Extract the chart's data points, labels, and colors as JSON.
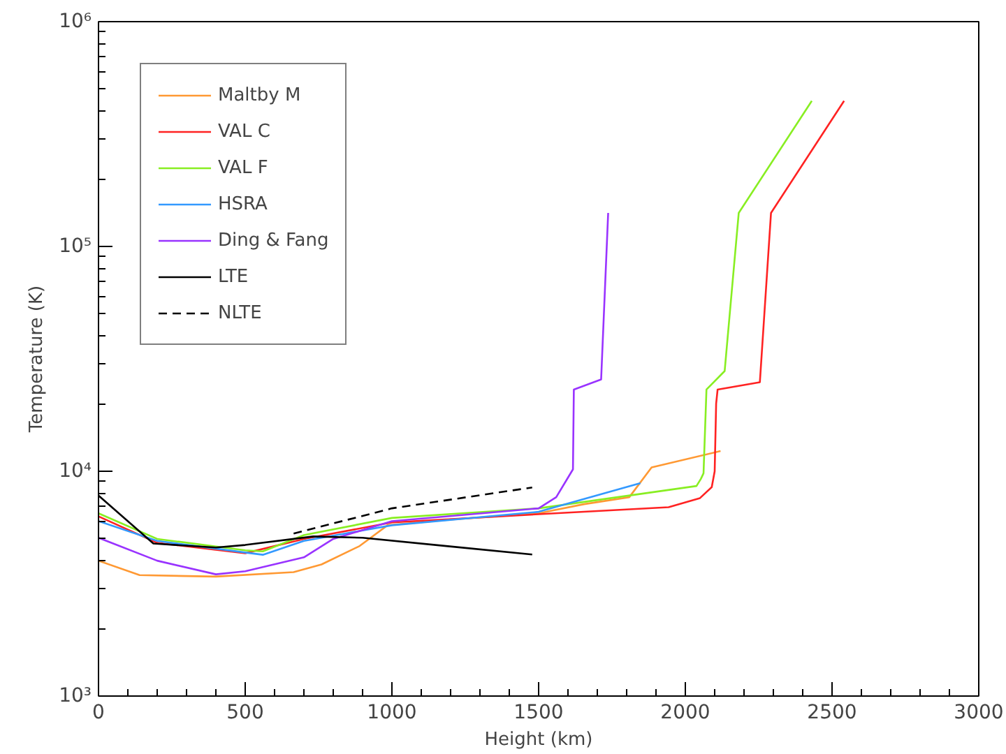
{
  "chart_data": {
    "type": "line",
    "xlabel": "Height (km)",
    "ylabel": "Temperature (K)",
    "log": "y",
    "xlim": [
      0,
      3000
    ],
    "xticks": [
      0,
      500,
      1000,
      1500,
      2000,
      2500,
      3000
    ],
    "ylim": [
      1000,
      1000000
    ],
    "yticks": [
      {
        "value": 1000,
        "label": "10³"
      },
      {
        "value": 10000,
        "label": "10⁴"
      },
      {
        "value": 100000,
        "label": "10⁵"
      },
      {
        "value": 1000000,
        "label": "10⁶"
      }
    ],
    "grid": false,
    "legend": "top left",
    "marker": "none",
    "series": [
      {
        "name": "Maltby M",
        "color": "#ff9933",
        "x": [
          0,
          140,
          400,
          665,
          760,
          890,
          985,
          1200,
          1500,
          1655,
          1809,
          1885,
          2120
        ],
        "values": [
          4000,
          3450,
          3400,
          3560,
          3850,
          4650,
          5750,
          6100,
          6500,
          7140,
          7670,
          10400,
          12300
        ]
      },
      {
        "name": "VAL C",
        "color": "#ff2222",
        "x": [
          0,
          200,
          500,
          700,
          1000,
          1500,
          1943,
          2050,
          2090,
          2100,
          2105,
          2110,
          2254,
          2292,
          2541
        ],
        "values": [
          6300,
          4800,
          4320,
          5000,
          5920,
          6440,
          6920,
          7600,
          8500,
          10000,
          20000,
          23100,
          24900,
          141000,
          444000
        ]
      },
      {
        "name": "VAL F",
        "color": "#88ee22",
        "x": [
          0,
          200,
          500,
          560,
          700,
          1000,
          1500,
          2038,
          2053,
          2062,
          2072,
          2134,
          2182,
          2431
        ],
        "values": [
          6500,
          5000,
          4450,
          4400,
          5200,
          6200,
          6840,
          8600,
          9250,
          9800,
          23100,
          27900,
          141000,
          444000
        ]
      },
      {
        "name": "HSRA",
        "color": "#3399ff",
        "x": [
          0,
          200,
          500,
          560,
          700,
          1000,
          1500,
          1847
        ],
        "values": [
          6000,
          4900,
          4350,
          4250,
          4900,
          5750,
          6600,
          8850
        ]
      },
      {
        "name": "Ding & Fang",
        "color": "#9933ff",
        "x": [
          0,
          200,
          400,
          500,
          700,
          800,
          1000,
          1500,
          1560,
          1617,
          1620,
          1713,
          1737
        ],
        "values": [
          5060,
          4000,
          3480,
          3590,
          4140,
          5000,
          6000,
          6840,
          7670,
          10200,
          23100,
          25600,
          141000
        ]
      },
      {
        "name": "LTE",
        "color": "#000000",
        "line_style": "solid",
        "x": [
          0,
          187,
          400,
          500,
          732,
          900,
          1191,
          1478
        ],
        "values": [
          7800,
          4770,
          4580,
          4700,
          5130,
          5060,
          4640,
          4260
        ]
      },
      {
        "name": "NLTE",
        "color": "#000000",
        "line_style": "dashed",
        "x": [
          665,
          1000,
          1478
        ],
        "values": [
          5280,
          6840,
          8470
        ]
      }
    ]
  }
}
